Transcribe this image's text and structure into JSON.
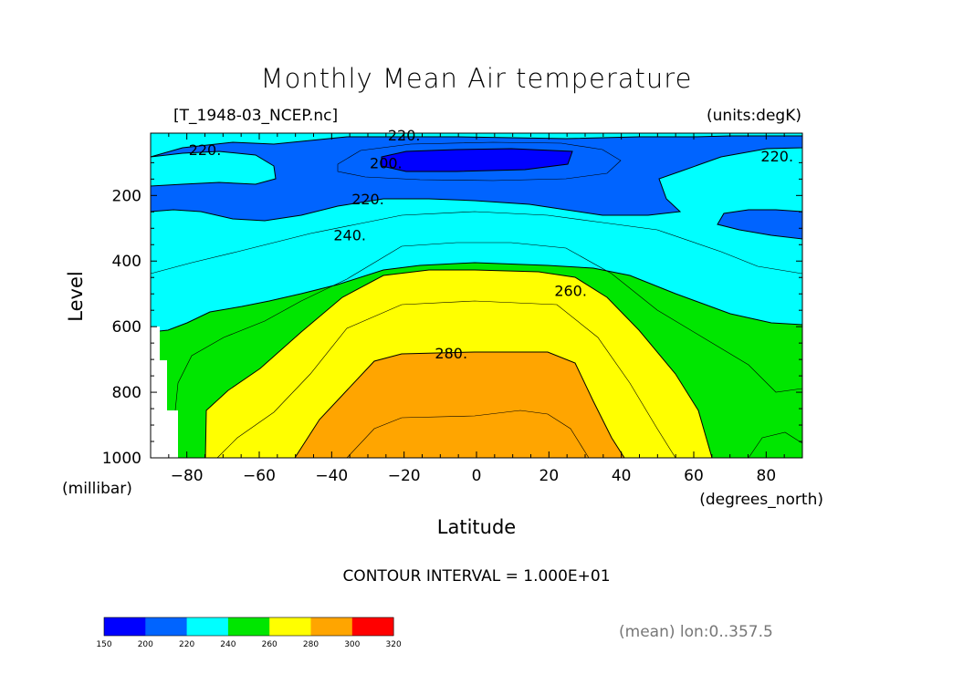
{
  "chart_data": {
    "type": "filled-contour",
    "title": "Monthly Mean Air temperature",
    "file_label": "[T_1948-03_NCEP.nc]",
    "units_label": "(units:degK)",
    "xlabel": "Latitude",
    "xunits": "(degrees_north)",
    "ylabel": "Level",
    "yunits": "(millibar)",
    "xlim": [
      -90,
      90
    ],
    "ylim": [
      1000,
      10
    ],
    "xticks": [
      -80,
      -60,
      -40,
      -20,
      0,
      20,
      40,
      60,
      80
    ],
    "yticks": [
      200,
      400,
      600,
      800,
      1000
    ],
    "contour_interval_text": "CONTOUR INTERVAL = 1.000E+01",
    "footnote": "(mean) lon:0..357.5",
    "levels": [
      150,
      200,
      220,
      240,
      260,
      280,
      300,
      320
    ],
    "level_colors": [
      "#0000ff",
      "#0064ff",
      "#00ffff",
      "#00e600",
      "#ffff00",
      "#ffa500",
      "#ff0000"
    ],
    "contour_labels": [
      {
        "text": "220.",
        "lat": -20,
        "level": 15
      },
      {
        "text": "220.",
        "lat": -75,
        "level": 60
      },
      {
        "text": "200.",
        "lat": -25,
        "level": 100
      },
      {
        "text": "220.",
        "lat": 83,
        "level": 80
      },
      {
        "text": "220.",
        "lat": -30,
        "level": 210
      },
      {
        "text": "240.",
        "lat": -35,
        "level": 320
      },
      {
        "text": "260.",
        "lat": 26,
        "level": 490
      },
      {
        "text": "280.",
        "lat": -7,
        "level": 680
      }
    ]
  }
}
